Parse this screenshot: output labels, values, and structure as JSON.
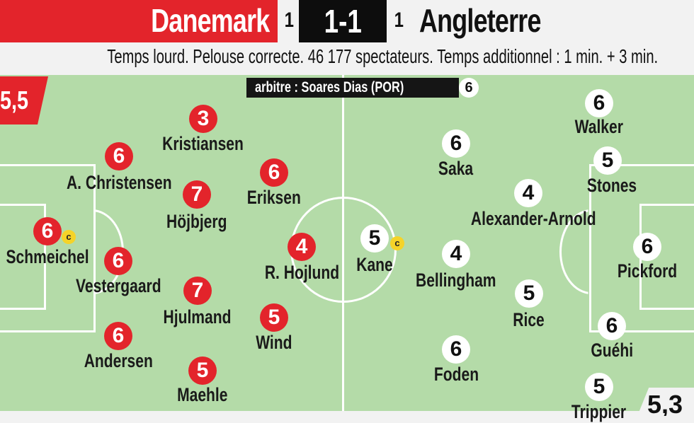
{
  "header": {
    "home_team": "Danemark",
    "home_goals": "1",
    "score": "1-1",
    "away_goals": "1",
    "away_team": "Angleterre"
  },
  "info": "Temps lourd. Pelouse correcte. 46 177 spectateurs. Temps additionnel : 1 min. + 3 min.",
  "referee": {
    "label": "arbitre : Soares Dias (POR)",
    "rating": "6"
  },
  "team_ratings": {
    "home": "5,5",
    "away": "5,3"
  },
  "captain_mark": "c",
  "colors": {
    "home": "#e3242b",
    "away": "#ffffff",
    "pitch": "#b4dba8"
  },
  "home_players": [
    {
      "name": "Kristiansen",
      "rating": "3"
    },
    {
      "name": "A. Christensen",
      "rating": "6"
    },
    {
      "name": "Höjbjerg",
      "rating": "7"
    },
    {
      "name": "Eriksen",
      "rating": "6"
    },
    {
      "name": "Schmeichel",
      "rating": "6"
    },
    {
      "name": "Vestergaard",
      "rating": "6"
    },
    {
      "name": "R. Hojlund",
      "rating": "4"
    },
    {
      "name": "Hjulmand",
      "rating": "7"
    },
    {
      "name": "Wind",
      "rating": "5"
    },
    {
      "name": "Andersen",
      "rating": "6"
    },
    {
      "name": "Maehle",
      "rating": "5"
    }
  ],
  "away_players": [
    {
      "name": "Walker",
      "rating": "6"
    },
    {
      "name": "Saka",
      "rating": "6"
    },
    {
      "name": "Stones",
      "rating": "5"
    },
    {
      "name": "Alexander-Arnold",
      "rating": "4"
    },
    {
      "name": "Kane",
      "rating": "5"
    },
    {
      "name": "Bellingham",
      "rating": "4"
    },
    {
      "name": "Pickford",
      "rating": "6"
    },
    {
      "name": "Rice",
      "rating": "5"
    },
    {
      "name": "Guéhi",
      "rating": "6"
    },
    {
      "name": "Foden",
      "rating": "6"
    },
    {
      "name": "Trippier",
      "rating": "5"
    }
  ]
}
